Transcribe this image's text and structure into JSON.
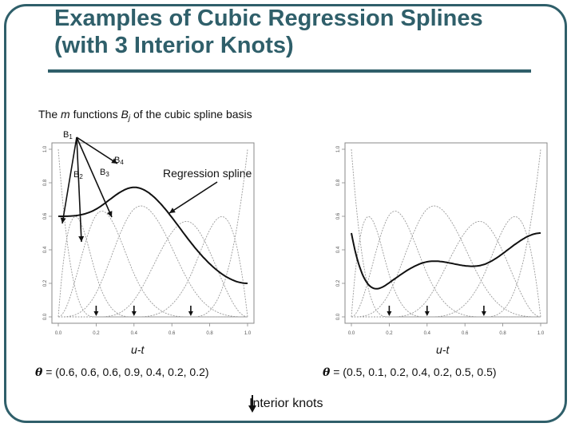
{
  "slide": {
    "title_line1": "Examples of Cubic Regression Splines",
    "title_line2": "(with 3 Interior Knots)",
    "basis_caption": {
      "pre": "The ",
      "m": "m",
      "mid": " functions ",
      "B": "B",
      "j": "j",
      "post": " of the cubic spline basis"
    },
    "labels": {
      "b1": "1",
      "b2": "2",
      "b3": "3",
      "b4": "4",
      "B": "B"
    },
    "regression_label": "Regression spline",
    "theta_left": " = (0.6, 0.6, 0.6, 0.9, 0.4, 0.2, 0.2)",
    "theta_right": " = (0.5, 0.1, 0.2, 0.4, 0.2, 0.5, 0.5)",
    "theta_symbol": "θ",
    "interior_knots_label": "Interior knots",
    "xlabel": "u-t"
  },
  "colors": {
    "accent": "#2f5f6a",
    "basis": "#9a9a9a",
    "fit": "#111111"
  },
  "chart_data": [
    {
      "type": "line",
      "title": "",
      "xlabel": "u-t",
      "ylabel": "",
      "xlim": [
        0.0,
        1.0
      ],
      "ylim": [
        0.0,
        1.0
      ],
      "x_ticks": [
        "0.0",
        "0.2",
        "0.4",
        "0.6",
        "0.8",
        "1.0"
      ],
      "y_ticks": [
        "0.0",
        "0.2",
        "0.4",
        "0.6",
        "0.8",
        "1.0"
      ],
      "interior_knots": [
        0.2,
        0.4,
        0.7
      ],
      "coefficients": [
        0.6,
        0.6,
        0.6,
        0.9,
        0.4,
        0.2,
        0.2
      ],
      "series": [
        {
          "name": "Regression spline",
          "style": "fit"
        },
        {
          "style": "basis",
          "count": 7
        }
      ]
    },
    {
      "type": "line",
      "title": "",
      "xlabel": "u-t",
      "ylabel": "",
      "xlim": [
        0.0,
        1.0
      ],
      "ylim": [
        0.0,
        1.0
      ],
      "x_ticks": [
        "0.0",
        "0.2",
        "0.4",
        "0.6",
        "0.8",
        "1.0"
      ],
      "y_ticks": [
        "0.0",
        "0.2",
        "0.4",
        "0.6",
        "0.8",
        "1.0"
      ],
      "interior_knots": [
        0.2,
        0.4,
        0.7
      ],
      "coefficients": [
        0.5,
        0.1,
        0.2,
        0.4,
        0.2,
        0.5,
        0.5
      ],
      "series": [
        {
          "style": "fit"
        },
        {
          "style": "basis",
          "count": 7
        }
      ]
    }
  ]
}
